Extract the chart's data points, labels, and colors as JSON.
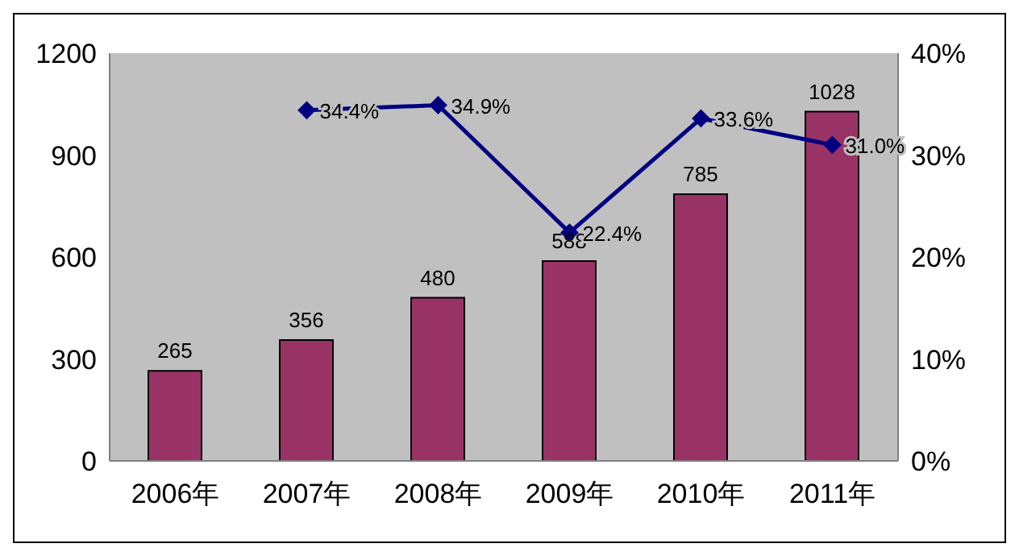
{
  "chart_data": {
    "type": "bar",
    "categories": [
      "2006年",
      "2007年",
      "2008年",
      "2009年",
      "2010年",
      "2011年"
    ],
    "series": [
      {
        "color": "#993366",
        "values": [
          265,
          356,
          480,
          588,
          785,
          1028
        ],
        "value_labels": [
          "265",
          "356",
          "480",
          "588",
          "785",
          "1028"
        ]
      },
      {
        "type": "line",
        "axis": "y2",
        "color": "#000080",
        "marker": "diamond",
        "values": [
          null,
          34.4,
          34.9,
          22.4,
          33.6,
          31.0
        ],
        "value_labels": [
          null,
          "34.4%",
          "34.9%",
          "22.4%",
          "33.6%",
          "31.0%"
        ]
      }
    ],
    "ylim": [
      0,
      1200
    ],
    "yticks": [
      0,
      300,
      600,
      900,
      1200
    ],
    "y2lim": [
      0,
      40
    ],
    "y2ticks": [
      {
        "value": 0,
        "label": "0%"
      },
      {
        "value": 10,
        "label": "10%"
      },
      {
        "value": 20,
        "label": "20%"
      },
      {
        "value": 30,
        "label": "30%"
      },
      {
        "value": 40,
        "label": "40%"
      }
    ],
    "grid": false,
    "legend": false
  }
}
